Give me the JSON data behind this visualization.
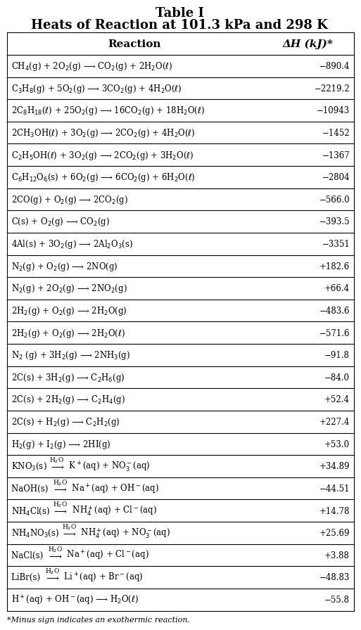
{
  "title_line1": "Table I",
  "title_line2": "Heats of Reaction at 101.3 kPa and 298 K",
  "col_header_reaction": "Reaction",
  "col_header_dH": "ΔH (kJ)*",
  "footnote": "*Minus sign indicates an exothermic reaction.",
  "rows": [
    [
      "CH$_4$(g) + 2O$_2$(g) ⟶ CO$_2$(g) + 2H$_2$O($\\ell$)",
      "−890.4"
    ],
    [
      "C$_3$H$_8$(g) + 5O$_2$(g) ⟶ 3CO$_2$(g) + 4H$_2$O($\\ell$)",
      "−2219.2"
    ],
    [
      "2C$_8$H$_{18}$($\\ell$) + 25O$_2$(g) ⟶ 16CO$_2$(g) + 18H$_2$O($\\ell$)",
      "−10943"
    ],
    [
      "2CH$_3$OH($\\ell$) + 3O$_2$(g) ⟶ 2CO$_2$(g) + 4H$_2$O($\\ell$)",
      "−1452"
    ],
    [
      "C$_2$H$_5$OH($\\ell$) + 3O$_2$(g) ⟶ 2CO$_2$(g) + 3H$_2$O($\\ell$)",
      "−1367"
    ],
    [
      "C$_6$H$_{12}$O$_6$(s) + 6O$_2$(g) ⟶ 6CO$_2$(g) + 6H$_2$O($\\ell$)",
      "−2804"
    ],
    [
      "2CO(g) + O$_2$(g) ⟶ 2CO$_2$(g)",
      "−566.0"
    ],
    [
      "C(s) + O$_2$(g) ⟶ CO$_2$(g)",
      "−393.5"
    ],
    [
      "4Al(s) + 3O$_2$(g) ⟶ 2Al$_2$O$_3$(s)",
      "−3351"
    ],
    [
      "N$_2$(g) + O$_2$(g) ⟶ 2NO(g)",
      "+182.6"
    ],
    [
      "N$_2$(g) + 2O$_2$(g) ⟶ 2NO$_2$(g)",
      "+66.4"
    ],
    [
      "2H$_2$(g) + O$_2$(g) ⟶ 2H$_2$O(g)",
      "−483.6"
    ],
    [
      "2H$_2$(g) + O$_2$(g) ⟶ 2H$_2$O($\\ell$)",
      "−571.6"
    ],
    [
      "N$_2$ (g) + 3H$_2$(g) ⟶ 2NH$_3$(g)",
      "−91.8"
    ],
    [
      "2C(s) + 3H$_2$(g) ⟶ C$_2$H$_6$(g)",
      "−84.0"
    ],
    [
      "2C(s) + 2H$_2$(g) ⟶ C$_2$H$_4$(g)",
      "+52.4"
    ],
    [
      "2C(s) + H$_2$(g) ⟶ C$_2$H$_2$(g)",
      "+227.4"
    ],
    [
      "H$_2$(g) + I$_2$(g) ⟶ 2HI(g)",
      "+53.0"
    ],
    [
      "KNO$_3$(s) —H$_2$O⟶ K$^+$(aq) + NO$_3^-$(aq)",
      "+34.89"
    ],
    [
      "NaOH(s) —H$_2$O⟶ Na$^+$(aq) + OH$^-$(aq)",
      "−44.51"
    ],
    [
      "NH$_4$Cl(s) —H$_2$O⟶ NH$_4^+$(aq) + Cl$^-$(aq)",
      "+14.78"
    ],
    [
      "NH$_4$NO$_3$(s) —H$_2$O⟶ NH$_4^+$(aq) + NO$_3^-$(aq)",
      "+25.69"
    ],
    [
      "NaCl(s) —H$_2$O⟶ Na$^+$(aq) + Cl$^-$(aq)",
      "+3.88"
    ],
    [
      "LiBr(s) —H$_2$O⟶ Li$^+$(aq) + Br$^-$(aq)",
      "−48.83"
    ],
    [
      "H$^+$(aq) + OH$^-$(aq) ⟶ H$_2$O($\\ell$)",
      "−55.8"
    ]
  ],
  "h2o_rows": [
    18,
    19,
    20,
    21,
    22,
    23
  ]
}
